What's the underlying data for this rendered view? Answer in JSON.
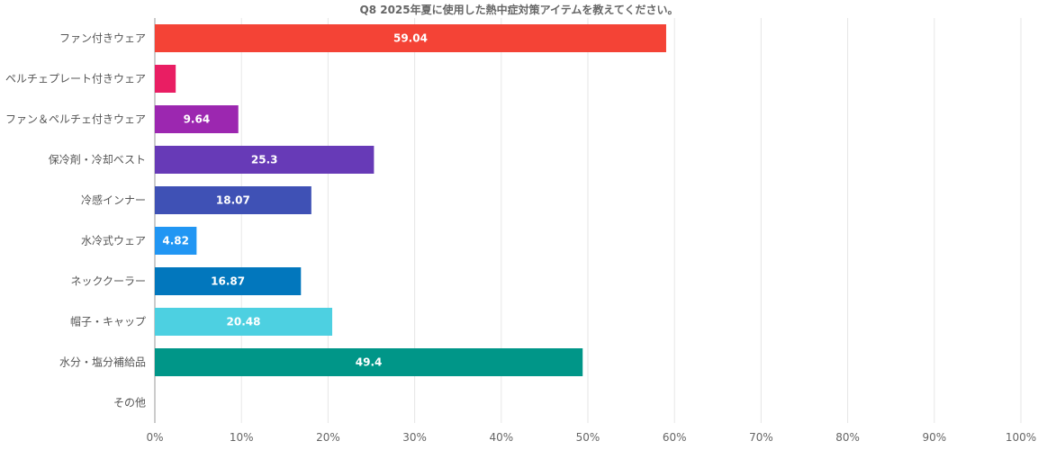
{
  "chart_data": {
    "type": "bar",
    "orientation": "horizontal",
    "title": "Q8 2025年夏に使用した熱中症対策アイテムを教えてください。",
    "categories": [
      "ファン付きウェア",
      "ペルチェプレート付きウェア",
      "ファン＆ペルチェ付きウェア",
      "保冷剤・冷却ベスト",
      "冷感インナー",
      "水冷式ウェア",
      "ネッククーラー",
      "帽子・キャップ",
      "水分・塩分補給品",
      "その他"
    ],
    "values": [
      59.04,
      2.41,
      9.64,
      25.3,
      18.07,
      4.82,
      16.87,
      20.48,
      49.4,
      0
    ],
    "data_labels": [
      "59.04",
      "",
      "9.64",
      "25.3",
      "18.07",
      "4.82",
      "16.87",
      "20.48",
      "49.4",
      ""
    ],
    "colors": [
      "#f44336",
      "#e91e63",
      "#9c27b0",
      "#673ab7",
      "#3f51b5",
      "#2196f3",
      "#0277bd",
      "#4dd0e1",
      "#009688",
      "#8bc34a"
    ],
    "xlim": [
      0,
      100
    ],
    "xticks": [
      "0%",
      "10%",
      "20%",
      "30%",
      "40%",
      "50%",
      "60%",
      "70%",
      "80%",
      "90%",
      "100%"
    ],
    "grid": true,
    "legend": "none"
  }
}
